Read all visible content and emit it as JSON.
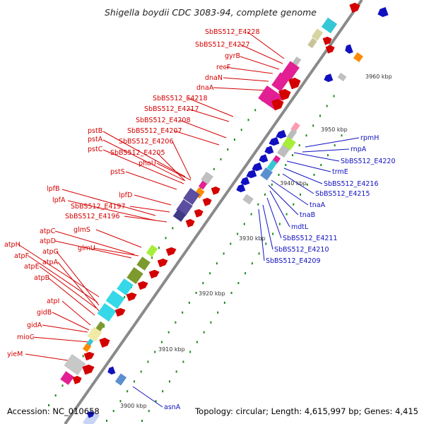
{
  "title": "Shigella boydii CDC 3083-94, complete genome",
  "footer": {
    "accession": "Accession: NC_010658",
    "stats": "Topology: circular; Length: 4,615,997 bp; Genes: 4,415"
  },
  "colors": {
    "red": "#d40000",
    "blue": "#1010c0",
    "backbone": "#888888"
  },
  "kbp_labels": [
    "3960 kbp",
    "3950 kbp",
    "3940 kbp",
    "3930 kbp",
    "3920 kbp",
    "3910 kbp",
    "3900 kbp"
  ],
  "left_labels": [
    "SbBS512_E4228",
    "SbBS512_E4227",
    "gyrB",
    "recF",
    "dnaN",
    "dnaA",
    "SbBS512_E4218",
    "SbBS512_E4217",
    "SbBS512_E4208",
    "SbBS512_E4207",
    "pstB",
    "SbBS512_E4206",
    "pstA",
    "pstC",
    "SbBS512_E4205",
    "phoU",
    "pstS",
    "lpfB",
    "lpfA",
    "lpfD",
    "SbBS512_E4197",
    "SbBS512_E4196",
    "glmS",
    "atpC",
    "atpD",
    "glmU",
    "atpH",
    "atpF",
    "atpG",
    "atpE",
    "atpA",
    "atpB",
    "atpI",
    "gidB",
    "gidA",
    "mioC",
    "yieM"
  ],
  "right_labels": [
    "rpmH",
    "rnpA",
    "SbBS512_E4220",
    "trmE",
    "SbBS512_E4216",
    "SbBS512_E4215",
    "tnaA",
    "tnaB",
    "mdtL",
    "SbBS512_E4211",
    "SbBS512_E4210",
    "SbBS512_E4209",
    "asnA"
  ]
}
